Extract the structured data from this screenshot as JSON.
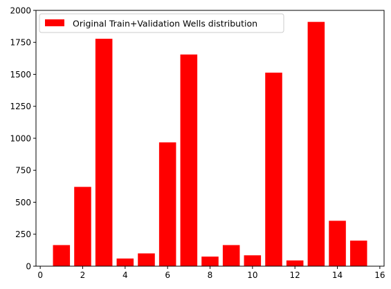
{
  "chart_data": {
    "type": "bar",
    "x": [
      1,
      2,
      3,
      4,
      5,
      6,
      7,
      8,
      9,
      10,
      11,
      12,
      13,
      14,
      15
    ],
    "values": [
      165,
      620,
      1778,
      60,
      100,
      968,
      1655,
      75,
      165,
      85,
      1513,
      45,
      1910,
      355,
      200
    ],
    "series": [
      {
        "name": "Original Train+Validation Wells distribution",
        "color": "#ff0000"
      }
    ],
    "bar_width": 0.8,
    "xlim": [
      -0.2,
      16.2
    ],
    "ylim": [
      0,
      2000
    ],
    "xticks": [
      0,
      2,
      4,
      6,
      8,
      10,
      12,
      14,
      16
    ],
    "xtick_labels": [
      "0",
      "2",
      "4",
      "6",
      "8",
      "10",
      "12",
      "14",
      "16"
    ],
    "yticks": [
      0,
      250,
      500,
      750,
      1000,
      1250,
      1500,
      1750,
      2000
    ],
    "ytick_labels": [
      "0",
      "250",
      "500",
      "750",
      "1000",
      "1250",
      "1500",
      "1750",
      "2000"
    ],
    "title": "",
    "xlabel": "",
    "ylabel": "",
    "grid": false,
    "legend_position": "top-left"
  }
}
